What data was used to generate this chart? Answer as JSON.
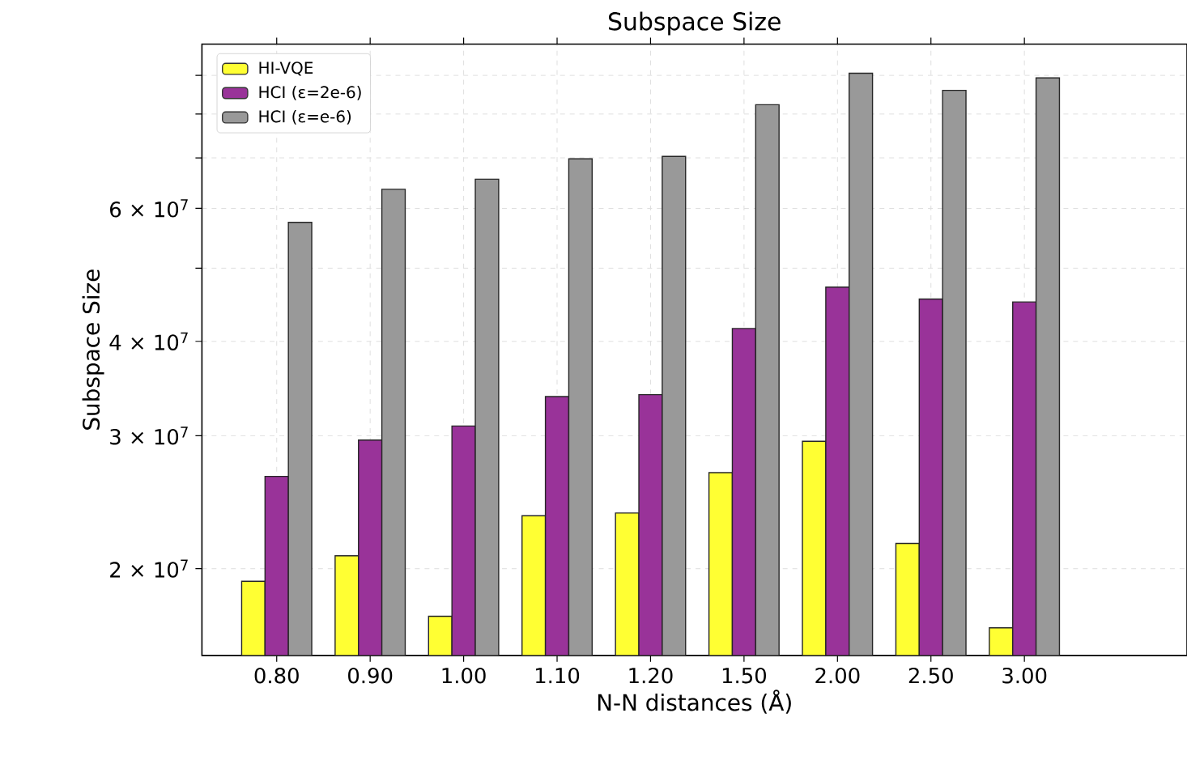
{
  "chart_data": {
    "type": "bar",
    "title": "Subspace Size",
    "xlabel": "N-N distances (Å)",
    "ylabel": "Subspace Size",
    "categories": [
      "0.80",
      "0.90",
      "1.00",
      "1.10",
      "1.20",
      "1.50",
      "2.00",
      "2.50",
      "3.00"
    ],
    "series": [
      {
        "name": "HI-VQE",
        "color": "#ffff33",
        "values": [
          19250000,
          20800000,
          17300000,
          23500000,
          23700000,
          26800000,
          29500000,
          21600000,
          16700000
        ]
      },
      {
        "name": "HCI (ε=2e-6)",
        "color": "#993399",
        "values": [
          26500000,
          29600000,
          30900000,
          33800000,
          34000000,
          41600000,
          47200000,
          45500000,
          45100000
        ]
      },
      {
        "name": "HCI (ε=e-6)",
        "color": "#999999",
        "values": [
          57500000,
          63600000,
          65600000,
          69800000,
          70300000,
          82300000,
          90600000,
          86000000,
          89300000
        ]
      }
    ],
    "log": "y",
    "ylim": [
      15350000,
      99000000
    ],
    "yticks": [
      {
        "value": 20000000,
        "label": "2 × 10$^{7}$"
      },
      {
        "value": 30000000,
        "label": "3 × 10$^{7}$"
      },
      {
        "value": 40000000,
        "label": "4 × 10$^{7}$"
      },
      {
        "value": 50000000,
        "label": null
      },
      {
        "value": 60000000,
        "label": "6 × 10$^{7}$"
      },
      {
        "value": 70000000,
        "label": null
      },
      {
        "value": 80000000,
        "label": null
      },
      {
        "value": 90000000,
        "label": null
      }
    ],
    "grid": true,
    "legend": "top left"
  }
}
